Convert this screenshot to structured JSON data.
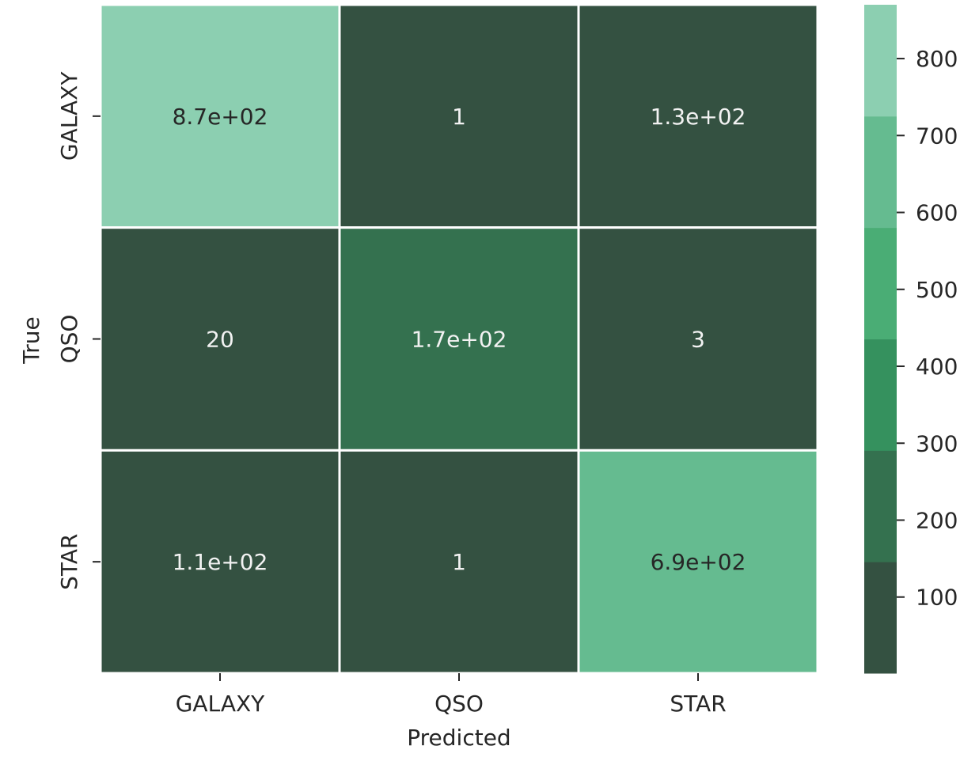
{
  "chart_data": {
    "type": "heatmap",
    "title": "",
    "xlabel": "Predicted",
    "ylabel": "True",
    "x_categories": [
      "GALAXY",
      "QSO",
      "STAR"
    ],
    "y_categories": [
      "GALAXY",
      "QSO",
      "STAR"
    ],
    "values": [
      [
        870,
        1,
        130
      ],
      [
        20,
        170,
        3
      ],
      [
        110,
        1,
        690
      ]
    ],
    "annotations": [
      [
        "8.7e+02",
        "1",
        "1.3e+02"
      ],
      [
        "20",
        "1.7e+02",
        "3"
      ],
      [
        "1.1e+02",
        "1",
        "6.9e+02"
      ]
    ],
    "colorbar": {
      "ticks": [
        100,
        200,
        300,
        400,
        500,
        600,
        700,
        800
      ],
      "range": [
        1,
        870
      ],
      "levels": 6,
      "colors": [
        "#345141",
        "#34714f",
        "#35915e",
        "#4aad75",
        "#65bb90",
        "#8ccfb1"
      ]
    },
    "annotation_colors": {
      "light": "#f2f2f2",
      "dark": "#262626"
    },
    "grid_line_color": "#ffffff"
  }
}
